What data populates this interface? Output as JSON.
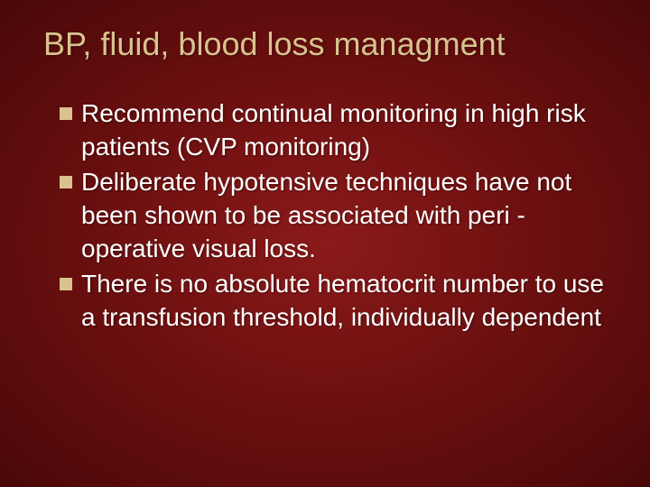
{
  "slide": {
    "title": "BP, fluid, blood loss managment",
    "bullets": [
      "Recommend continual monitoring in high risk patients (CVP monitoring)",
      "Deliberate hypotensive techniques have not been shown to be associated with peri -operative visual loss.",
      "There is no absolute hematocrit number to use a transfusion threshold, individually dependent"
    ],
    "colors": {
      "background_center": "#8b1a1a",
      "background_edge": "#4a0808",
      "title_color": "#d9c28f",
      "bullet_marker_color": "#d9c28f",
      "text_color": "#ffffff"
    },
    "typography": {
      "title_fontsize": 36,
      "body_fontsize": 28,
      "font_family": "Arial"
    }
  }
}
